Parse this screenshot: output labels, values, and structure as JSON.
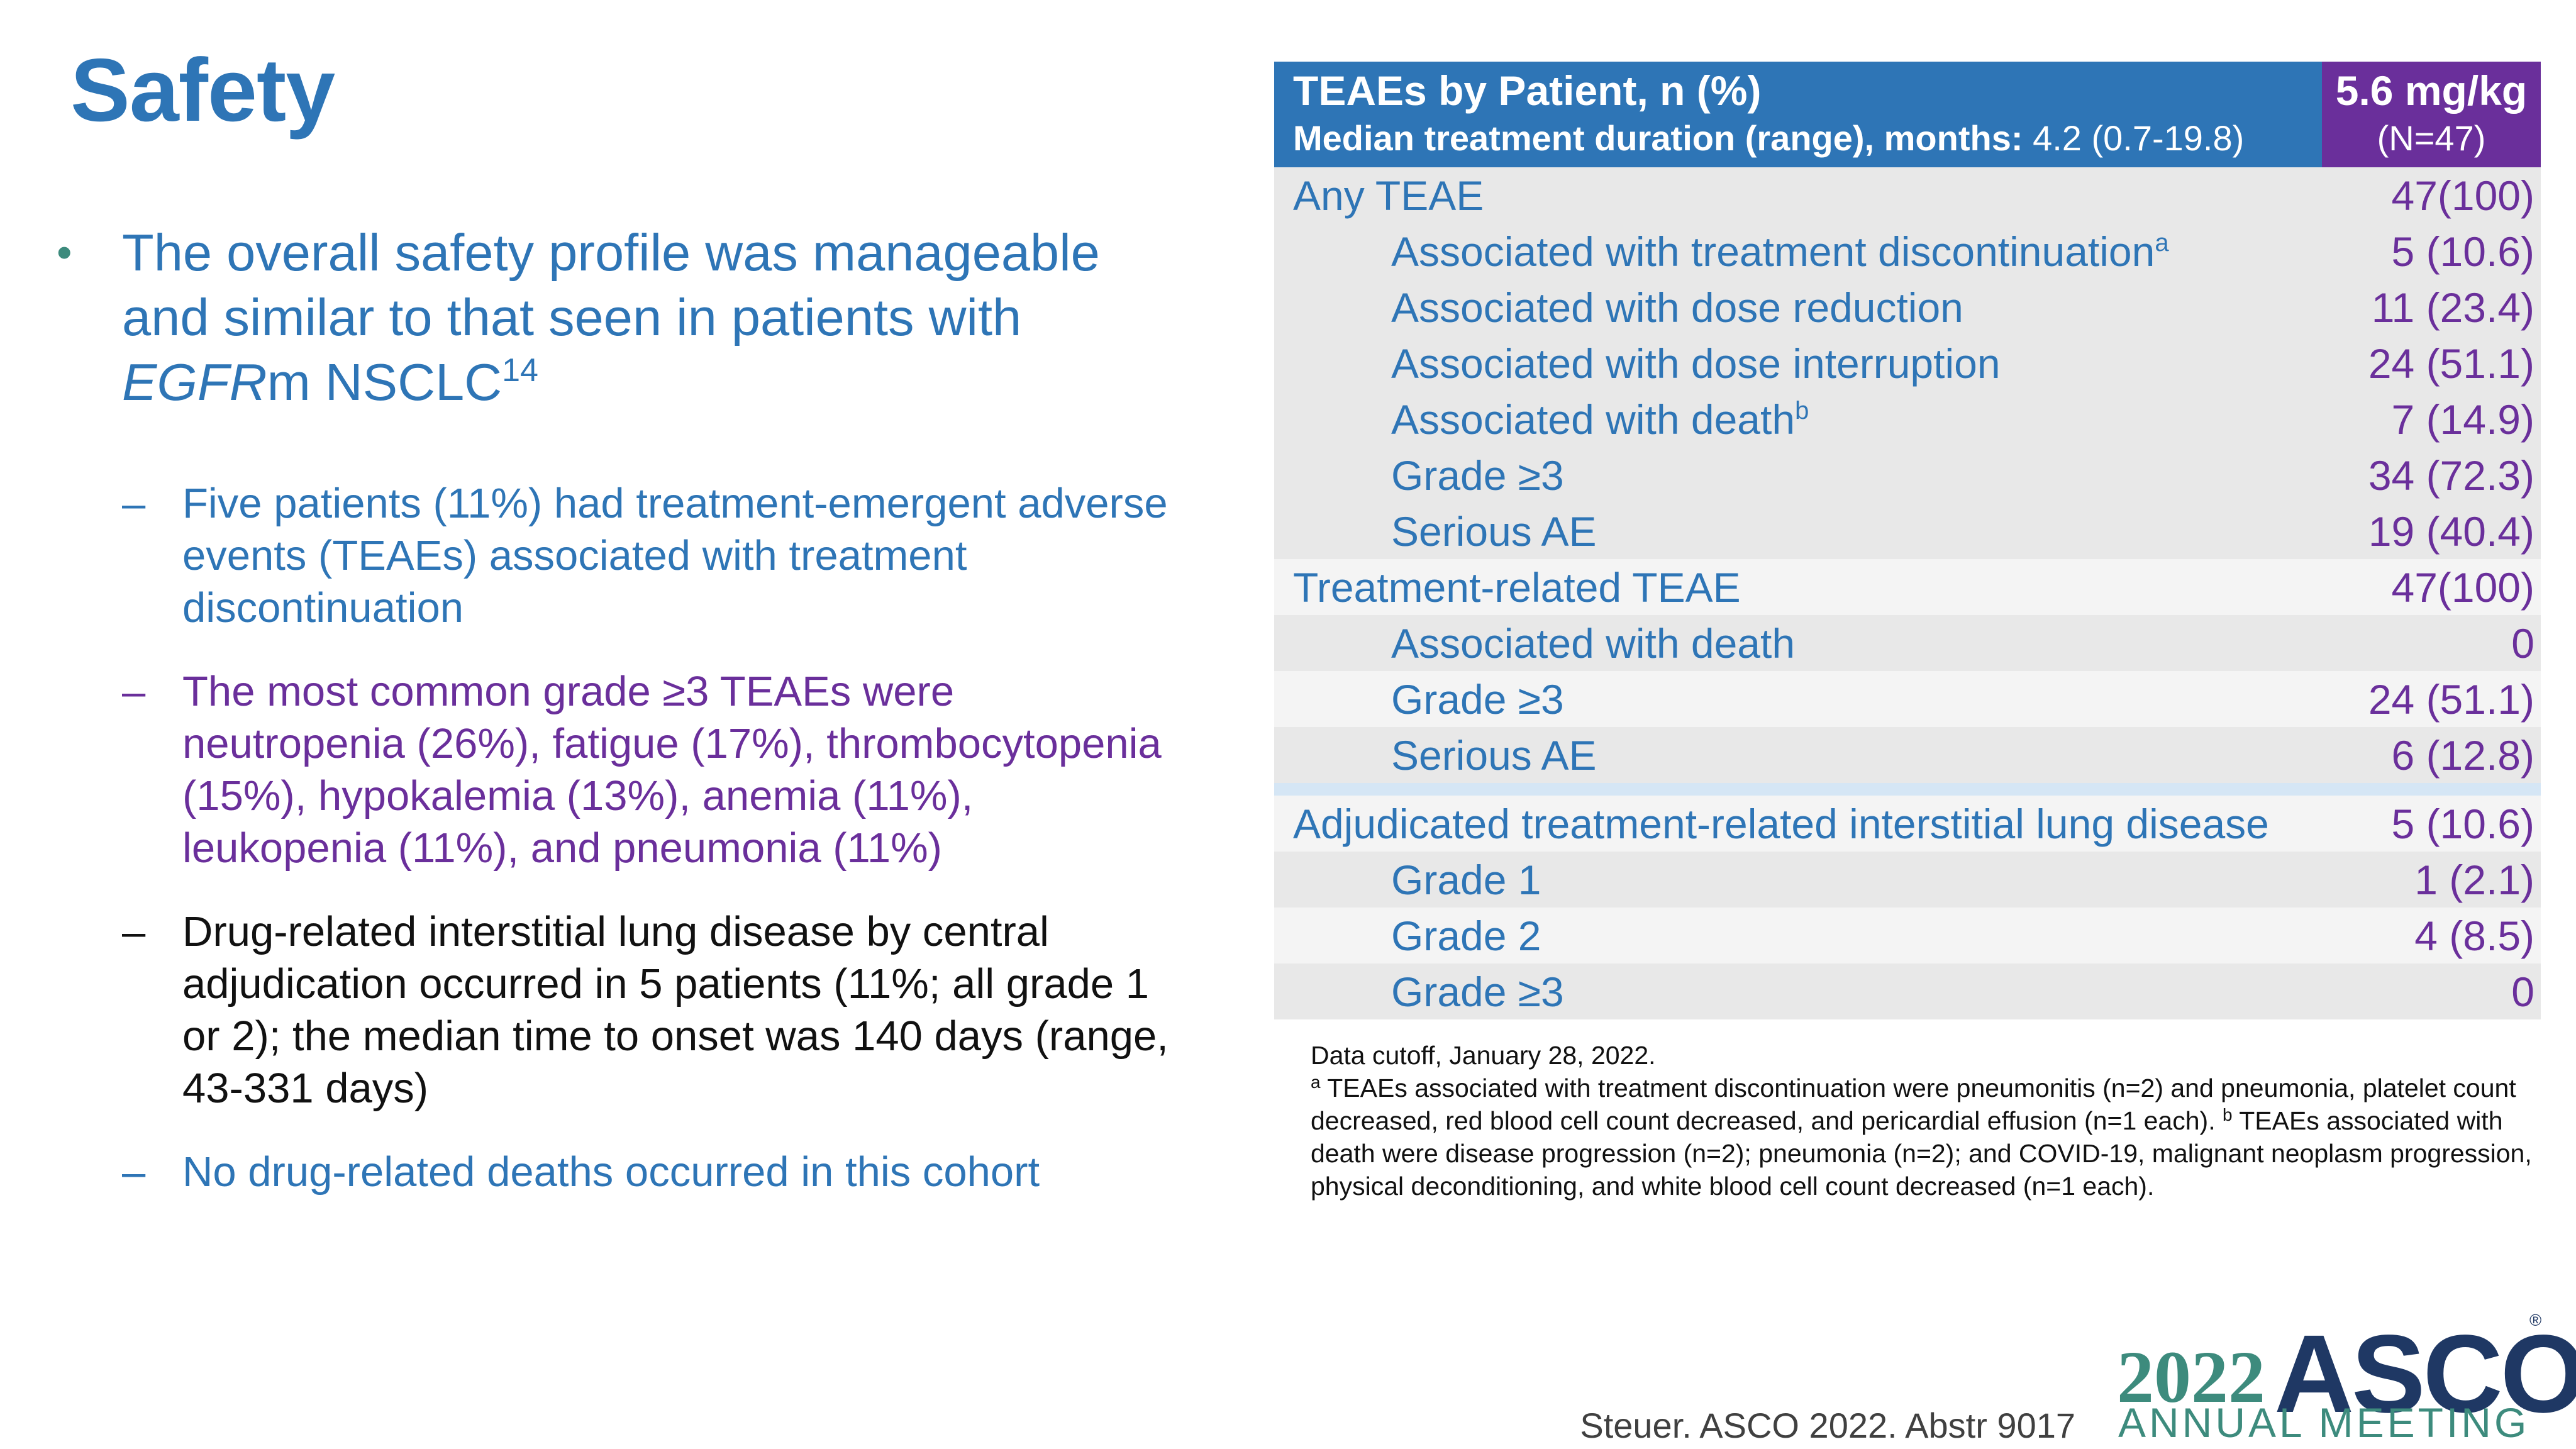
{
  "slide": {
    "title": "Safety"
  },
  "bullets": {
    "main": {
      "symbol": "•",
      "text_1": "The overall safety profile was manageable and similar to that seen in patients with ",
      "text_italic": "EGFR",
      "text_2": "m NSCLC",
      "superscript": "14"
    },
    "sub_symbol": "–",
    "sub": [
      "Five patients (11%) had treatment-emergent adverse events (TEAEs) associated with treatment discontinuation",
      "The most common grade ≥3 TEAEs were neutropenia (26%), fatigue (17%), thrombocytopenia (15%), hypokalemia (13%), anemia (11%), leukopenia (11%), and pneumonia (11%)",
      "Drug-related interstitial lung disease by central adjudication occurred in 5 patients (11%; all grade 1 or 2); the median time to onset was 140 days (range, 43-331 days)",
      "No drug-related deaths occurred in this cohort"
    ]
  },
  "table": {
    "header": {
      "title": "TEAEs by Patient, n (%)",
      "subtitle_bold": "Median treatment duration (range), months:",
      "subtitle_value": "4.2 (0.7-19.8)",
      "dose": "5.6 mg/kg",
      "n": "(N=47)"
    },
    "section1": [
      {
        "label": "Any TEAE",
        "sup": "",
        "value": "47(100)"
      },
      {
        "label": "Associated with treatment discontinuation",
        "sup": "a",
        "value": "5 (10.6)"
      },
      {
        "label": "Associated with dose reduction",
        "sup": "",
        "value": "11 (23.4)"
      },
      {
        "label": "Associated with dose interruption",
        "sup": "",
        "value": "24 (51.1)"
      },
      {
        "label": "Associated with death",
        "sup": "b",
        "value": "7 (14.9)"
      },
      {
        "label": "Grade ≥3",
        "sup": "",
        "value": "34 (72.3)"
      },
      {
        "label": "Serious AE",
        "sup": "",
        "value": "19 (40.4)"
      },
      {
        "label": "Treatment-related TEAE",
        "sup": "",
        "value": "47(100)"
      },
      {
        "label": "Associated with death",
        "sup": "",
        "value": "0"
      },
      {
        "label": "Grade ≥3",
        "sup": "",
        "value": "24 (51.1)"
      },
      {
        "label": "Serious AE",
        "sup": "",
        "value": "6 (12.8)"
      }
    ],
    "section2": [
      {
        "label": "Adjudicated treatment-related interstitial lung disease",
        "value": "5 (10.6)"
      },
      {
        "label": "Grade 1",
        "value": "1 (2.1)"
      },
      {
        "label": "Grade 2",
        "value": "4 (8.5)"
      },
      {
        "label": "Grade ≥3",
        "value": "0"
      }
    ]
  },
  "footnote": {
    "cutoff": "Data cutoff, January 28, 2022.",
    "a_mark": "a",
    "a_text": " TEAEs associated with treatment discontinuation were pneumonitis (n=2) and pneumonia, platelet count decreased, red blood cell count decreased, and pericardial effusion (n=1 each). ",
    "b_mark": "b",
    "b_text": " TEAEs associated with death were disease progression (n=2); pneumonia (n=2); and COVID-19, malignant neoplasm progression, physical deconditioning, and white blood cell count decreased (n=1 each)."
  },
  "citation": "Steuer. ASCO 2022. Abstr 9017",
  "logo": {
    "year": "2022",
    "name": "ASCO",
    "registered": "®",
    "subtitle": "ANNUAL MEETING"
  },
  "colors": {
    "title_blue": "#2e75b6",
    "purple": "#6a2f9b",
    "teal": "#3d8b7d",
    "navy": "#1f3864"
  }
}
